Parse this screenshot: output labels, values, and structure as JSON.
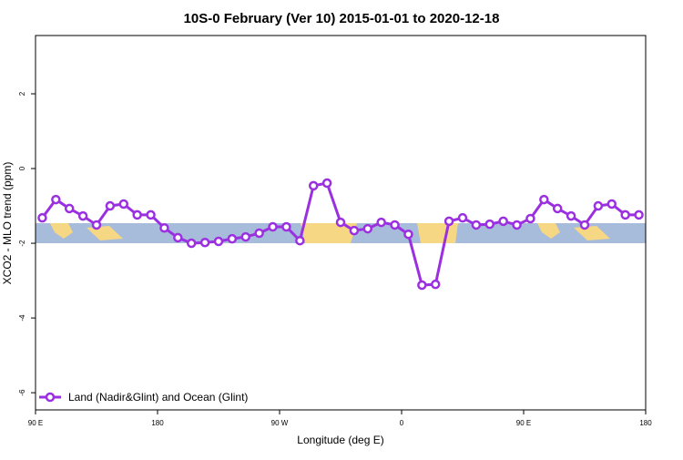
{
  "chart_data": {
    "type": "line",
    "title": "10S-0 February (Ver 10)   2015-01-01 to 2020-12-18",
    "x_label": "Longitude (deg E)",
    "y_label": "XCO2 - MLO trend (ppm)",
    "x": [
      95,
      105,
      115,
      125,
      135,
      145,
      155,
      165,
      175,
      185,
      195,
      205,
      215,
      225,
      235,
      245,
      255,
      265,
      275,
      285,
      295,
      305,
      315,
      325,
      335,
      345,
      355,
      365,
      375,
      385,
      395,
      405,
      415,
      425,
      435,
      445,
      455,
      465,
      475,
      485,
      495,
      505,
      515,
      525,
      535
    ],
    "series": [
      {
        "name": "Land (Nadir&Glint) and Ocean (Glint)",
        "color": "#9b30e0",
        "values": [
          -1.32,
          -0.83,
          -1.07,
          -1.27,
          -1.51,
          -1.0,
          -0.95,
          -1.24,
          -1.24,
          -1.59,
          -1.85,
          -2.0,
          -1.98,
          -1.95,
          -1.88,
          -1.83,
          -1.73,
          -1.56,
          -1.56,
          -1.93,
          -0.46,
          -0.39,
          -1.44,
          -1.66,
          -1.61,
          -1.44,
          -1.51,
          -1.76,
          -3.12,
          -3.1,
          -1.41,
          -1.32,
          -1.51,
          -1.49,
          -1.41,
          -1.51,
          -1.34,
          -0.83,
          -1.07,
          -1.27,
          -1.51,
          -1.0,
          -0.95,
          -1.24,
          -1.24
        ]
      }
    ],
    "xlim": [
      90,
      540
    ],
    "xticks": [
      {
        "value": 90,
        "label": "90 E"
      },
      180,
      {
        "value": 270,
        "label": "90 W"
      },
      {
        "value": 360,
        "label": "0"
      },
      {
        "value": 450,
        "label": "90 E"
      },
      {
        "value": 540,
        "label": "180"
      }
    ],
    "ylim": [
      -6.46,
      3.56
    ],
    "yticks": [
      -6,
      -4,
      -2,
      0,
      2
    ],
    "legend": "bottom-left"
  }
}
